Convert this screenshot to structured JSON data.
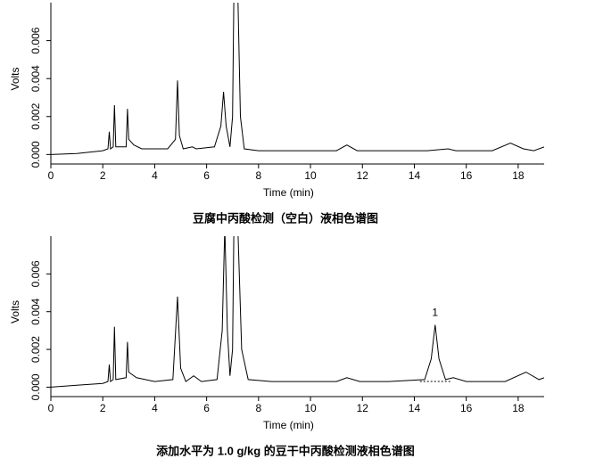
{
  "chart_data": [
    {
      "type": "line",
      "title": "豆腐中丙酸检测（空白）液相色谱图",
      "x_label": "Time (min)",
      "y_label": "Volts",
      "color": "#000000",
      "xlim": [
        0,
        19
      ],
      "xticks": [
        0,
        2,
        4,
        6,
        8,
        10,
        12,
        14,
        16,
        18
      ],
      "ylim": [
        -0.0005,
        0.008
      ],
      "yticks": [
        {
          "value": 0,
          "label": "0.000"
        },
        {
          "value": 0.002,
          "label": "0.002"
        },
        {
          "value": 0.004,
          "label": "0.004"
        },
        {
          "value": 0.006,
          "label": "0.006"
        }
      ],
      "x": [
        0,
        1,
        2,
        2.2,
        2.25,
        2.3,
        2.4,
        2.45,
        2.5,
        2.9,
        2.95,
        3.0,
        3.2,
        3.5,
        4.0,
        4.5,
        4.8,
        4.88,
        4.95,
        5.1,
        5.45,
        5.6,
        6.3,
        6.55,
        6.65,
        6.75,
        6.9,
        7.0,
        7.05,
        7.2,
        7.3,
        7.45,
        8,
        9,
        10,
        11,
        11.4,
        11.8,
        12.6,
        13.5,
        14.5,
        15.3,
        15.6,
        17.0,
        17.7,
        18.2,
        18.6,
        19.0
      ],
      "values": [
        0,
        5e-05,
        0.0002,
        0.0003,
        0.0012,
        0.0003,
        0.0004,
        0.0026,
        0.0004,
        0.0004,
        0.0024,
        0.0008,
        0.0005,
        0.0003,
        0.0003,
        0.0003,
        0.0008,
        0.0039,
        0.001,
        0.0003,
        0.0004,
        0.0003,
        0.0004,
        0.0015,
        0.0033,
        0.0015,
        0.0004,
        0.002,
        0.0085,
        0.0085,
        0.002,
        0.0003,
        0.0002,
        0.0002,
        0.0002,
        0.0002,
        0.0005,
        0.0002,
        0.0002,
        0.0002,
        0.0002,
        0.0003,
        0.0002,
        0.0002,
        0.0006,
        0.0003,
        0.0002,
        0.0004
      ]
    },
    {
      "type": "line",
      "title": "添加水平为 1.0 g/kg 的豆干中丙酸检测液相色谱图",
      "x_label": "Time (min)",
      "y_label": "Volts",
      "color": "#000000",
      "xlim": [
        0,
        19
      ],
      "xticks": [
        0,
        2,
        4,
        6,
        8,
        10,
        12,
        14,
        16,
        18
      ],
      "ylim": [
        -0.0005,
        0.008
      ],
      "yticks": [
        {
          "value": 0,
          "label": "0.000"
        },
        {
          "value": 0.002,
          "label": "0.002"
        },
        {
          "value": 0.004,
          "label": "0.004"
        },
        {
          "value": 0.006,
          "label": "0.006"
        }
      ],
      "annotations": [
        {
          "text": "1",
          "x": 14.8,
          "y": 0.0033
        }
      ],
      "x": [
        0,
        1,
        2,
        2.2,
        2.25,
        2.3,
        2.4,
        2.45,
        2.5,
        2.9,
        2.95,
        3.0,
        3.3,
        4.0,
        4.7,
        4.88,
        5.0,
        5.2,
        5.5,
        5.8,
        6.4,
        6.6,
        6.7,
        6.8,
        6.9,
        7.0,
        7.05,
        7.2,
        7.35,
        7.6,
        8.5,
        10,
        11,
        11.4,
        11.9,
        13,
        14.4,
        14.65,
        14.8,
        14.95,
        15.2,
        15.5,
        16,
        17.5,
        18.3,
        18.8,
        19
      ],
      "values": [
        0,
        0.0001,
        0.0002,
        0.0003,
        0.0012,
        0.0003,
        0.0004,
        0.0032,
        0.0004,
        0.0005,
        0.0024,
        0.0008,
        0.0005,
        0.0003,
        0.0004,
        0.0048,
        0.001,
        0.0003,
        0.0006,
        0.0003,
        0.0004,
        0.003,
        0.0085,
        0.003,
        0.0006,
        0.002,
        0.0085,
        0.0085,
        0.002,
        0.0004,
        0.0003,
        0.0003,
        0.0003,
        0.0005,
        0.0003,
        0.0003,
        0.0004,
        0.0015,
        0.0033,
        0.0015,
        0.0004,
        0.0005,
        0.0003,
        0.0003,
        0.0008,
        0.0004,
        0.0005
      ]
    }
  ]
}
